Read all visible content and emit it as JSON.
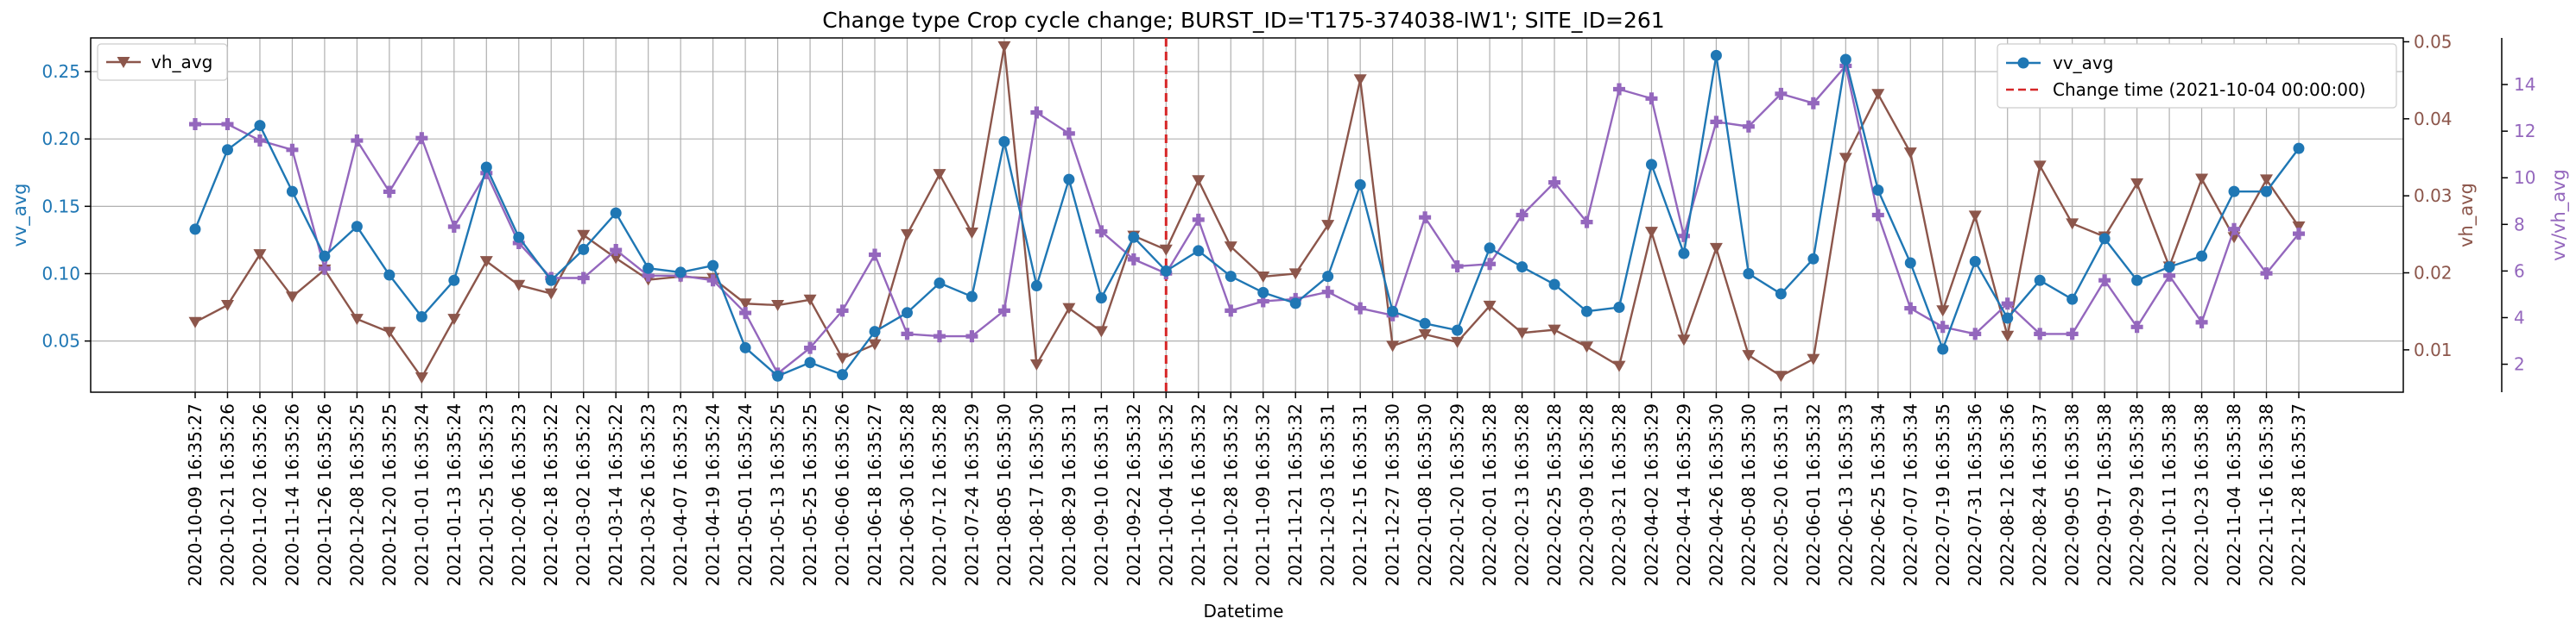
{
  "chart_data": {
    "type": "line",
    "title": "Change type Crop cycle change; BURST_ID='T175-374038-IW1'; SITE_ID=261",
    "xlabel": "Datetime",
    "ylabel_left": "vv_avg",
    "ylabel_right": "vh_avg",
    "ylabel_right2": "vv/vh_avg",
    "x": [
      "2020-10-09 16:35:27",
      "2020-10-21 16:35:26",
      "2020-11-02 16:35:26",
      "2020-11-14 16:35:26",
      "2020-11-26 16:35:26",
      "2020-12-08 16:35:25",
      "2020-12-20 16:35:25",
      "2021-01-01 16:35:24",
      "2021-01-13 16:35:24",
      "2021-01-25 16:35:23",
      "2021-02-06 16:35:23",
      "2021-02-18 16:35:22",
      "2021-03-02 16:35:22",
      "2021-03-14 16:35:22",
      "2021-03-26 16:35:23",
      "2021-04-07 16:35:23",
      "2021-04-19 16:35:24",
      "2021-05-01 16:35:24",
      "2021-05-13 16:35:25",
      "2021-05-25 16:35:25",
      "2021-06-06 16:35:26",
      "2021-06-18 16:35:27",
      "2021-06-30 16:35:28",
      "2021-07-12 16:35:28",
      "2021-07-24 16:35:29",
      "2021-08-05 16:35:30",
      "2021-08-17 16:35:30",
      "2021-08-29 16:35:31",
      "2021-09-10 16:35:31",
      "2021-09-22 16:35:32",
      "2021-10-04 16:35:32",
      "2021-10-16 16:35:32",
      "2021-10-28 16:35:32",
      "2021-11-09 16:35:32",
      "2021-11-21 16:35:32",
      "2021-12-03 16:35:31",
      "2021-12-15 16:35:31",
      "2021-12-27 16:35:30",
      "2022-01-08 16:35:30",
      "2022-01-20 16:35:29",
      "2022-02-01 16:35:28",
      "2022-02-13 16:35:28",
      "2022-02-25 16:35:28",
      "2022-03-09 16:35:28",
      "2022-03-21 16:35:28",
      "2022-04-02 16:35:29",
      "2022-04-14 16:35:29",
      "2022-04-26 16:35:30",
      "2022-05-08 16:35:30",
      "2022-05-20 16:35:31",
      "2022-06-01 16:35:32",
      "2022-06-13 16:35:33",
      "2022-06-25 16:35:34",
      "2022-07-07 16:35:34",
      "2022-07-19 16:35:35",
      "2022-07-31 16:35:36",
      "2022-08-12 16:35:36",
      "2022-08-24 16:35:37",
      "2022-09-05 16:35:38",
      "2022-09-17 16:35:38",
      "2022-09-29 16:35:38",
      "2022-10-11 16:35:38",
      "2022-10-23 16:35:38",
      "2022-11-04 16:35:38",
      "2022-11-16 16:35:38",
      "2022-11-28 16:35:37"
    ],
    "series": [
      {
        "name": "vv_avg",
        "axis": "left",
        "color": "#1f77b4",
        "marker": "circle",
        "values": [
          0.133,
          0.192,
          0.21,
          0.161,
          0.113,
          0.135,
          0.099,
          0.068,
          0.095,
          0.179,
          0.127,
          0.095,
          0.118,
          0.145,
          0.104,
          0.101,
          0.106,
          0.045,
          0.024,
          0.034,
          0.025,
          0.057,
          0.071,
          0.093,
          0.083,
          0.198,
          0.091,
          0.17,
          0.082,
          0.127,
          0.102,
          0.117,
          0.098,
          0.086,
          0.078,
          0.098,
          0.166,
          0.072,
          0.063,
          0.058,
          0.119,
          0.105,
          0.092,
          0.072,
          0.075,
          0.181,
          0.115,
          0.262,
          0.1,
          0.085,
          0.111,
          0.259,
          0.162,
          0.108,
          0.044,
          0.109,
          0.067,
          0.095,
          0.081,
          0.126,
          0.095,
          0.105,
          0.113,
          0.161,
          0.161,
          0.193
        ]
      },
      {
        "name": "vh_avg",
        "axis": "right",
        "color": "#8c564b",
        "marker": "triangle-down",
        "values": [
          0.0136,
          0.0158,
          0.0224,
          0.0169,
          0.0204,
          0.014,
          0.0123,
          0.0064,
          0.014,
          0.0215,
          0.0184,
          0.0173,
          0.0249,
          0.0219,
          0.0191,
          0.0195,
          0.0193,
          0.016,
          0.0158,
          0.0165,
          0.0089,
          0.0107,
          0.025,
          0.0328,
          0.0252,
          0.0494,
          0.0081,
          0.0154,
          0.0124,
          0.0248,
          0.023,
          0.032,
          0.0234,
          0.0195,
          0.0199,
          0.0262,
          0.0451,
          0.0105,
          0.012,
          0.011,
          0.0157,
          0.0122,
          0.0126,
          0.0104,
          0.0079,
          0.0253,
          0.0113,
          0.0232,
          0.0093,
          0.0066,
          0.0088,
          0.0349,
          0.0432,
          0.0356,
          0.0151,
          0.0274,
          0.0118,
          0.0339,
          0.0264,
          0.0247,
          0.0316,
          0.0208,
          0.0322,
          0.0246,
          0.0321,
          0.026
        ]
      },
      {
        "name": "vv/vh_avg",
        "axis": "right2",
        "color": "#9467bd",
        "marker": "plus",
        "values": [
          12.3,
          12.3,
          11.6,
          11.2,
          6.1,
          11.6,
          9.4,
          11.7,
          7.9,
          10.2,
          7.2,
          5.7,
          5.7,
          6.9,
          5.8,
          5.8,
          5.6,
          4.2,
          1.6,
          2.7,
          4.3,
          6.7,
          3.3,
          3.2,
          3.2,
          4.3,
          12.8,
          11.9,
          7.7,
          6.5,
          5.9,
          8.2,
          4.3,
          4.7,
          4.8,
          5.1,
          4.4,
          4.1,
          8.3,
          6.2,
          6.3,
          8.4,
          9.8,
          8.1,
          13.8,
          13.4,
          7.5,
          12.4,
          12.2,
          13.6,
          13.2,
          14.8,
          8.4,
          4.4,
          3.6,
          3.3,
          4.6,
          3.3,
          3.3,
          5.6,
          3.6,
          5.8,
          3.8,
          7.8,
          5.9,
          7.6
        ]
      }
    ],
    "change_line": {
      "label": "Change time (2021-10-04 00:00:00)",
      "index": 30,
      "color": "#d62728"
    },
    "ylim_left": [
      0.012,
      0.275
    ],
    "ylim_right": [
      0.0045,
      0.0505
    ],
    "ylim_right2": [
      0.8,
      16.0
    ],
    "yticks_left": [
      0.05,
      0.1,
      0.15,
      0.2,
      0.25
    ],
    "yticks_right": [
      0.01,
      0.02,
      0.03,
      0.04,
      0.05
    ],
    "yticks_right2": [
      2,
      4,
      6,
      8,
      10,
      12,
      14
    ],
    "grid": true,
    "legend_left": [
      "vh_avg"
    ],
    "legend_right": [
      "vv_avg",
      "Change time (2021-10-04 00:00:00)"
    ],
    "legend_left_placement": "upper left",
    "legend_right_placement": "upper right"
  }
}
